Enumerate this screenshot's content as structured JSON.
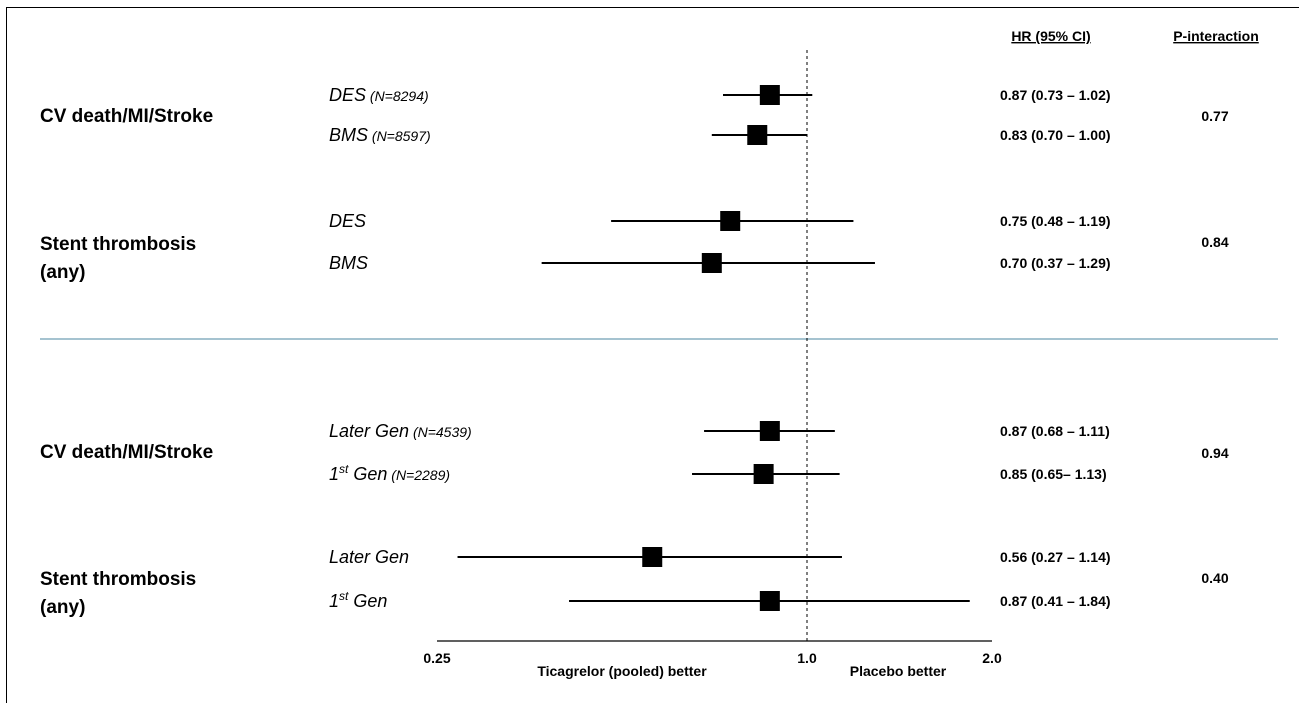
{
  "colors": {
    "separator": "#6f9fb3",
    "marker": "#000000"
  },
  "chart_data": {
    "type": "forest",
    "scale": "log",
    "xlim": [
      0.25,
      2.0
    ],
    "xticks": [
      "0.25",
      "1.0",
      "2.0"
    ],
    "reference_line": 1.0,
    "xlabel_left": "Ticagrelor (pooled) better",
    "xlabel_right": "Placebo better",
    "columns": {
      "hr": "HR (95% CI)",
      "p": "P-interaction"
    },
    "groups": [
      {
        "outcome_lines": [
          "CV death/MI/Stroke"
        ],
        "p_interaction": "0.77",
        "rows": [
          {
            "label": "DES",
            "sup": "",
            "label_rest": "",
            "n": "(N=8294)",
            "hr": 0.87,
            "lo": 0.73,
            "hi": 1.02,
            "text": "0.87 (0.73 – 1.02)"
          },
          {
            "label": "BMS",
            "sup": "",
            "label_rest": "",
            "n": "(N=8597)",
            "hr": 0.83,
            "lo": 0.7,
            "hi": 1.0,
            "text": "0.83 (0.70 – 1.00)"
          }
        ]
      },
      {
        "outcome_lines": [
          "Stent thrombosis",
          "(any)"
        ],
        "p_interaction": "0.84",
        "rows": [
          {
            "label": "DES",
            "sup": "",
            "label_rest": "",
            "n": "",
            "hr": 0.75,
            "lo": 0.48,
            "hi": 1.19,
            "text": "0.75 (0.48 – 1.19)"
          },
          {
            "label": "BMS",
            "sup": "",
            "label_rest": "",
            "n": "",
            "hr": 0.7,
            "lo": 0.37,
            "hi": 1.29,
            "text": "0.70 (0.37 – 1.29)"
          }
        ]
      },
      {
        "outcome_lines": [
          "CV death/MI/Stroke"
        ],
        "p_interaction": "0.94",
        "rows": [
          {
            "label": "Later Gen",
            "sup": "",
            "label_rest": "",
            "n": "(N=4539)",
            "hr": 0.87,
            "lo": 0.68,
            "hi": 1.11,
            "text": "0.87 (0.68 – 1.11)"
          },
          {
            "label": "1",
            "sup": "st",
            "label_rest": " Gen",
            "n": "(N=2289)",
            "hr": 0.85,
            "lo": 0.65,
            "hi": 1.13,
            "text": "0.85 (0.65– 1.13)"
          }
        ]
      },
      {
        "outcome_lines": [
          "Stent thrombosis",
          "(any)"
        ],
        "p_interaction": "0.40",
        "rows": [
          {
            "label": "Later Gen",
            "sup": "",
            "label_rest": "",
            "n": "",
            "hr": 0.56,
            "lo": 0.27,
            "hi": 1.14,
            "text": "0.56 (0.27 – 1.14)"
          },
          {
            "label": "1",
            "sup": "st",
            "label_rest": " Gen",
            "n": "",
            "hr": 0.87,
            "lo": 0.41,
            "hi": 1.84,
            "text": "0.87 (0.41 – 1.84)"
          }
        ]
      }
    ]
  }
}
